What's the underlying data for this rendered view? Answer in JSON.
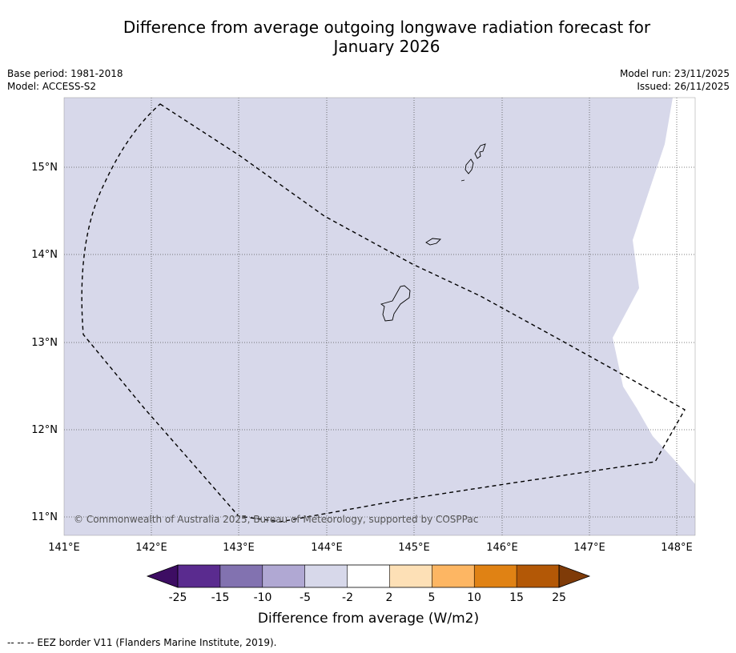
{
  "title_line1": "Difference from average outgoing longwave radiation forecast for",
  "title_line2": "January 2026",
  "base_period": "Base period: 1981-2018",
  "model": "Model: ACCESS-S2",
  "model_run": "Model run: 23/11/2025",
  "issued": "Issued: 26/11/2025",
  "copyright": "© Commonwealth of Australia 2025, Bureau of Meteorology, supported by COSPPac",
  "map": {
    "lon_labels": [
      "141°E",
      "142°E",
      "143°E",
      "144°E",
      "145°E",
      "146°E",
      "147°E",
      "148°E"
    ],
    "lat_labels": [
      "15°N",
      "14°N",
      "13°N",
      "12°N",
      "11°N"
    ],
    "background_class_color": "#d7d8ea",
    "neutral_color": "#ffffff"
  },
  "colorbar": {
    "title": "Difference from average (W/m2)",
    "tick_labels": [
      "-25",
      "-15",
      "-10",
      "-5",
      "-2",
      "2",
      "5",
      "10",
      "15",
      "25"
    ],
    "colors": [
      "#3d0d63",
      "#5a2b8f",
      "#8272b0",
      "#b0a8d3",
      "#d7d8ea",
      "#ffffff",
      "#fde0b6",
      "#fdb663",
      "#e08214",
      "#b35806",
      "#7f3b08"
    ]
  },
  "footnote": "-- -- -- EEZ border V11 (Flanders Marine Institute, 2019)."
}
